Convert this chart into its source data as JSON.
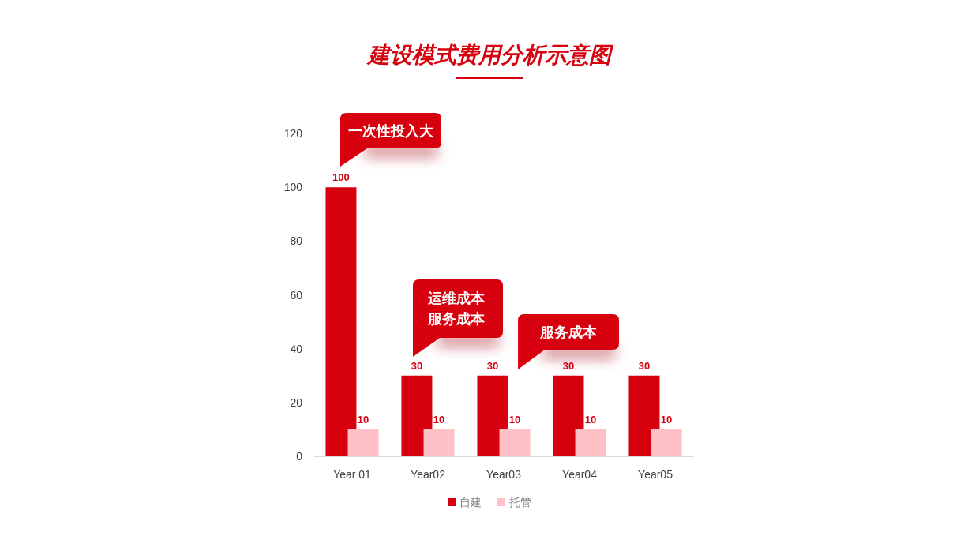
{
  "chart_data": {
    "type": "bar",
    "title": "建设模式费用分析示意图",
    "categories": [
      "Year 01",
      "Year02",
      "Year03",
      "Year04",
      "Year05"
    ],
    "series": [
      {
        "name": "自建",
        "color": "#d7000f",
        "values": [
          100,
          30,
          30,
          30,
          30
        ]
      },
      {
        "name": "托管",
        "color": "#ffc1c5",
        "values": [
          10,
          10,
          10,
          10,
          10
        ]
      }
    ],
    "ylim": [
      0,
      120
    ],
    "yticks": [
      0,
      20,
      40,
      60,
      80,
      100,
      120
    ],
    "legend": "bottom",
    "data_labels": true,
    "annotations": [
      "一次性投入大",
      "运维成本服务成本",
      "服务成本"
    ]
  }
}
